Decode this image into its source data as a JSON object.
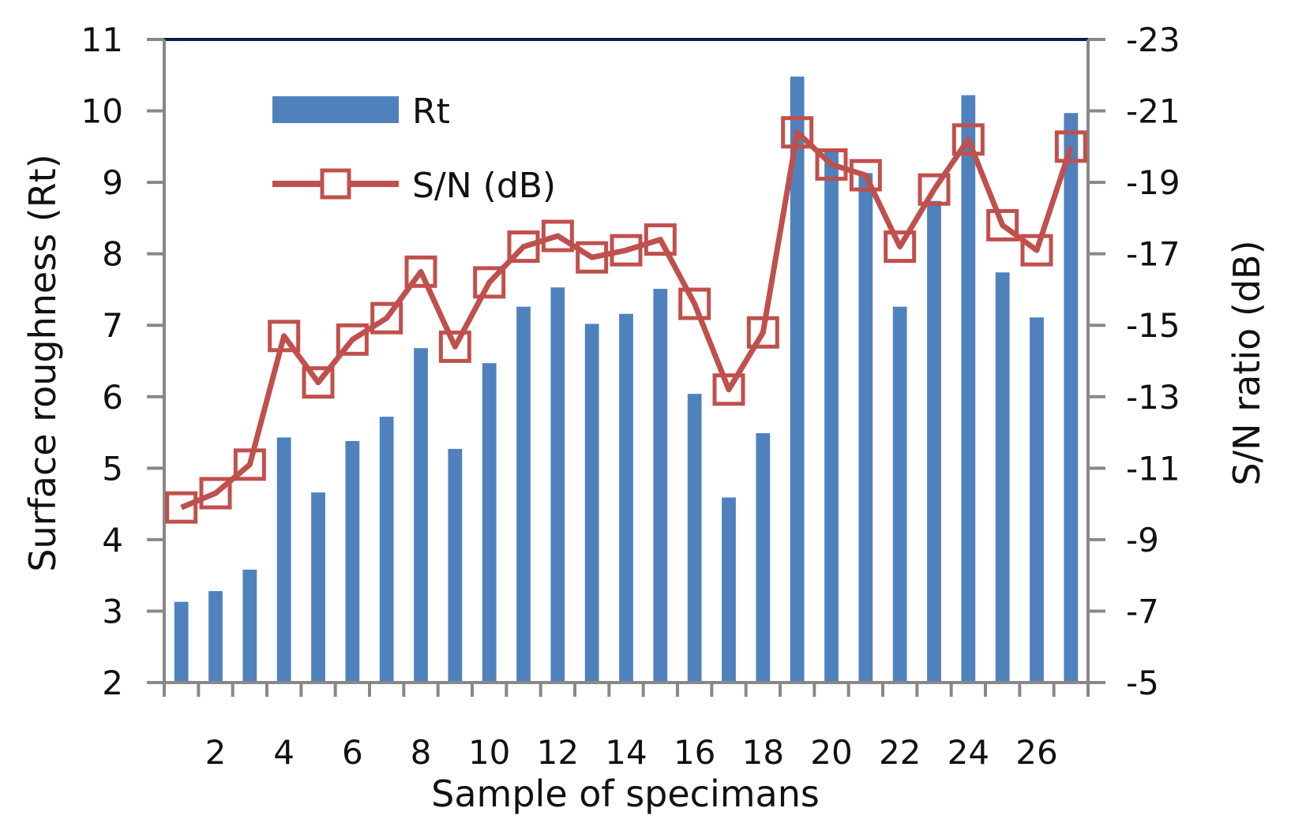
{
  "chart_data": {
    "type": "bar",
    "xlabel": "Sample of specimans",
    "ylabel": "Surface roughness (Rt)",
    "y2label": "S/N ratio (dB)",
    "x_tick_labels": [
      "2",
      "4",
      "6",
      "8",
      "10",
      "12",
      "14",
      "16",
      "18",
      "20",
      "22",
      "24",
      "26"
    ],
    "y_tick_labels": [
      "2",
      "3",
      "4",
      "5",
      "6",
      "7",
      "8",
      "9",
      "10",
      "11"
    ],
    "y2_tick_labels": [
      "-5",
      "-7",
      "-9",
      "-11",
      "-13",
      "-15",
      "-17",
      "-19",
      "-21",
      "-23"
    ],
    "ylim": [
      2,
      11
    ],
    "y2lim": [
      -5,
      -23
    ],
    "x": [
      1,
      2,
      3,
      4,
      5,
      6,
      7,
      8,
      9,
      10,
      11,
      12,
      13,
      14,
      15,
      16,
      17,
      18,
      19,
      20,
      21,
      22,
      23,
      24,
      25,
      26,
      27
    ],
    "legend_position": "top-left",
    "series": [
      {
        "name": "Rt",
        "type": "bar",
        "axis": "left",
        "color": "#4f81bd",
        "values": [
          3.13,
          3.28,
          3.58,
          5.43,
          4.66,
          5.38,
          5.72,
          6.68,
          5.27,
          6.47,
          7.26,
          7.53,
          7.02,
          7.16,
          7.51,
          6.04,
          4.59,
          5.49,
          10.48,
          9.45,
          9.13,
          7.26,
          8.74,
          10.22,
          7.74,
          7.11,
          9.97
        ]
      },
      {
        "name": "S/N (dB)",
        "type": "line",
        "axis": "right",
        "color": "#c0504d",
        "values": [
          -9.9,
          -10.3,
          -11.1,
          -14.7,
          -13.4,
          -14.6,
          -15.2,
          -16.5,
          -14.4,
          -16.2,
          -17.2,
          -17.5,
          -16.9,
          -17.1,
          -17.4,
          -15.6,
          -13.2,
          -14.8,
          -20.4,
          -19.5,
          -19.2,
          -17.2,
          -18.8,
          -20.2,
          -17.8,
          -17.1,
          -20.0
        ]
      }
    ]
  }
}
